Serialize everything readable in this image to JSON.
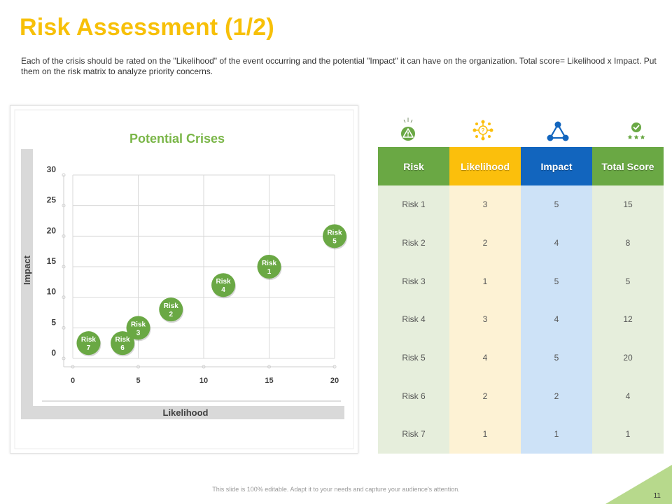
{
  "slide": {
    "title": "Risk Assessment (1/2)",
    "intro": "Each of the crisis should be rated on the \"Likelihood\" of the event occurring and the potential \"Impact\" it can have on the organization. Total score= Likelihood x Impact. Put them on the risk matrix to analyze priority concerns.",
    "footer": "This slide is 100% editable. Adapt it to your needs and capture your audience's attention.",
    "page_number": "11"
  },
  "colors": {
    "title": "#f7c008",
    "green": "#6aa844",
    "yellow": "#fbbf0c",
    "blue": "#1265be",
    "chart_title": "#7ab648",
    "bubble": "#6aa844"
  },
  "icons": [
    "warning-icon",
    "network-icon",
    "triangle-network-icon",
    "badge-stars-icon"
  ],
  "table": {
    "headers": [
      "Risk",
      "Likelihood",
      "Impact",
      "Total Score"
    ],
    "rows": [
      [
        "Risk 1",
        "3",
        "5",
        "15"
      ],
      [
        "Risk 2",
        "2",
        "4",
        "8"
      ],
      [
        "Risk 3",
        "1",
        "5",
        "5"
      ],
      [
        "Risk 4",
        "3",
        "4",
        "12"
      ],
      [
        "Risk 5",
        "4",
        "5",
        "20"
      ],
      [
        "Risk 6",
        "2",
        "2",
        "4"
      ],
      [
        "Risk 7",
        "1",
        "1",
        "1"
      ]
    ]
  },
  "chart_data": {
    "type": "scatter",
    "title": "Potential Crises",
    "xlabel": "Likelihood",
    "ylabel": "Impact",
    "xlim": [
      0,
      20
    ],
    "ylim": [
      0,
      30
    ],
    "xticks": [
      0,
      5,
      10,
      15,
      20
    ],
    "yticks": [
      0,
      5,
      10,
      15,
      20,
      25,
      30
    ],
    "grid": true,
    "points": [
      {
        "label": "Risk 1",
        "line1": "Risk",
        "line2": "1",
        "x": 15,
        "y": 15
      },
      {
        "label": "Risk 2",
        "line1": "Risk",
        "line2": "2",
        "x": 7.5,
        "y": 8
      },
      {
        "label": "Risk 3",
        "line1": "Risk",
        "line2": "3",
        "x": 5,
        "y": 5
      },
      {
        "label": "Risk 4",
        "line1": "Risk",
        "line2": "4",
        "x": 11.5,
        "y": 12
      },
      {
        "label": "Risk 5",
        "line1": "Risk",
        "line2": "5",
        "x": 20,
        "y": 20
      },
      {
        "label": "Risk 6",
        "line1": "Risk",
        "line2": "6",
        "x": 3.8,
        "y": 2.5
      },
      {
        "label": "Risk 7",
        "line1": "Risk",
        "line2": "7",
        "x": 1.2,
        "y": 2.5
      }
    ]
  }
}
